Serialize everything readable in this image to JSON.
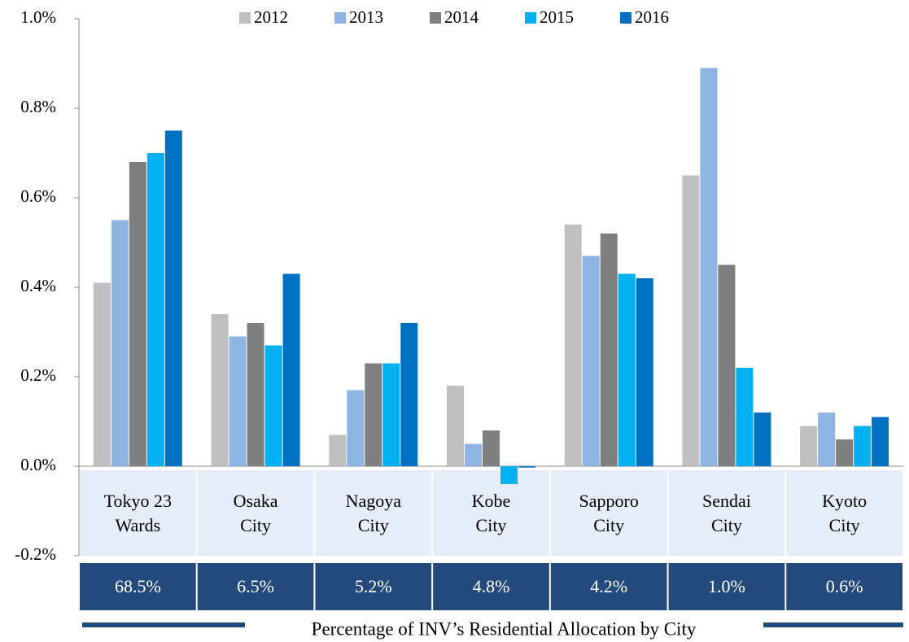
{
  "chart_data": {
    "type": "bar",
    "categories": [
      "Tokyo 23\nWards",
      "Osaka\nCity",
      "Nagoya\nCity",
      "Kobe\nCity",
      "Sapporo\nCity",
      "Sendai\nCity",
      "Kyoto\nCity"
    ],
    "series": [
      {
        "name": "2012",
        "color": "#bfbfbf",
        "values": [
          0.41,
          0.34,
          0.07,
          0.18,
          0.54,
          0.65,
          0.09
        ]
      },
      {
        "name": "2013",
        "color": "#8eb4e3",
        "values": [
          0.55,
          0.29,
          0.17,
          0.05,
          0.47,
          0.89,
          0.12
        ]
      },
      {
        "name": "2014",
        "color": "#7f7f7f",
        "values": [
          0.68,
          0.32,
          0.23,
          0.08,
          0.52,
          0.45,
          0.06
        ]
      },
      {
        "name": "2015",
        "color": "#00b0f0",
        "values": [
          0.7,
          0.27,
          0.23,
          -0.04,
          0.43,
          0.22,
          0.09
        ]
      },
      {
        "name": "2016",
        "color": "#0070c0",
        "values": [
          0.75,
          0.43,
          0.32,
          -0.003,
          0.42,
          0.12,
          0.11
        ]
      }
    ],
    "ylim": [
      -0.2,
      1.0
    ],
    "yticks": [
      {
        "value": -0.2,
        "label": "-0.2%"
      },
      {
        "value": 0.0,
        "label": "0.0%"
      },
      {
        "value": 0.2,
        "label": "0.2%"
      },
      {
        "value": 0.4,
        "label": "0.4%"
      },
      {
        "value": 0.6,
        "label": "0.6%"
      },
      {
        "value": 0.8,
        "label": "0.8%"
      },
      {
        "value": 1.0,
        "label": "1.0%"
      }
    ],
    "legend": "top",
    "allocation_row": [
      "68.5%",
      "6.5%",
      "5.2%",
      "4.8%",
      "4.2%",
      "1.0%",
      "0.6%"
    ],
    "caption": "Percentage of INV’s Residential Allocation by City"
  }
}
